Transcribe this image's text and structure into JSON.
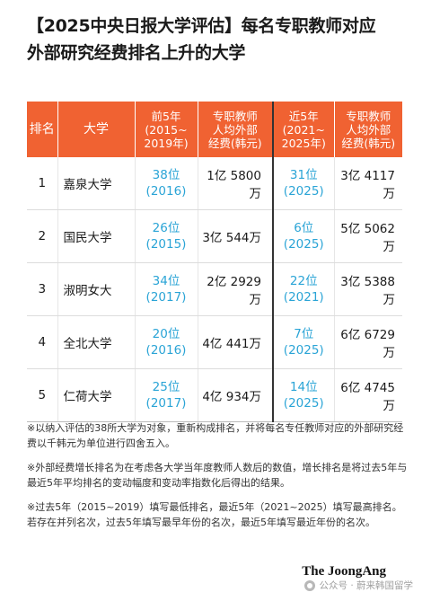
{
  "title": {
    "line1": "【2025中央日报大学评估】每名专职教师对应",
    "line2": "外部研究经费排名上升的大学"
  },
  "table": {
    "headers": {
      "rank": "排名",
      "university": "大学",
      "prev_rank": [
        "前5年",
        "(2015~",
        "2019年)"
      ],
      "prev_funding": [
        "专职教师",
        "人均外部",
        "经费(韩元)"
      ],
      "recent_rank": [
        "近5年",
        "(2021~",
        "2025年)"
      ],
      "recent_funding": [
        "专职教师",
        "人均外部",
        "经费(韩元)"
      ]
    },
    "rows": [
      {
        "rank": "1",
        "university": "嘉泉大学",
        "prev_rank": "38位",
        "prev_year": "(2016)",
        "prev_funding": "1亿 5800万",
        "recent_rank": "31位",
        "recent_year": "(2025)",
        "recent_funding": "3亿 4117万"
      },
      {
        "rank": "2",
        "university": "国民大学",
        "prev_rank": "26位",
        "prev_year": "(2015)",
        "prev_funding": "3亿 544万",
        "recent_rank": "6位",
        "recent_year": "(2025)",
        "recent_funding": "5亿 5062万"
      },
      {
        "rank": "3",
        "university": "淑明女大",
        "prev_rank": "34位",
        "prev_year": "(2017)",
        "prev_funding": "2亿 2929万",
        "recent_rank": "22位",
        "recent_year": "(2021)",
        "recent_funding": "3亿 5388万"
      },
      {
        "rank": "4",
        "university": "全北大学",
        "prev_rank": "20位",
        "prev_year": "(2016)",
        "prev_funding": "4亿 441万",
        "recent_rank": "7位",
        "recent_year": "(2025)",
        "recent_funding": "6亿 6729万"
      },
      {
        "rank": "5",
        "university": "仁荷大学",
        "prev_rank": "25位",
        "prev_year": "(2017)",
        "prev_funding": "4亿 934万",
        "recent_rank": "14位",
        "recent_year": "(2025)",
        "recent_funding": "6亿 4745万"
      }
    ]
  },
  "notes": [
    "※以纳入评估的38所大学为对象，重新构成排名，并将每名专任教师对应的外部研究经费以千韩元为单位进行四舍五入。",
    "※外部经费增长排名为在考虑各大学当年度教师人数后的数值，增长排名是将过去5年与最近5年平均排名的变动幅度和变动率指数化后得出的结果。",
    "※过去5年（2015~2019）填写最低排名，最近5年（2021~2025）填写最高排名。若存在并列名次，过去5年填写最早年份的名次，最近5年填写最近年份的名次。"
  ],
  "footer": {
    "brand": "The JoongAng",
    "watermark": "公众号 · 蔚来韩国留学"
  },
  "colors": {
    "header_bg": "#f06232",
    "rank_text": "#2aa4d6"
  }
}
